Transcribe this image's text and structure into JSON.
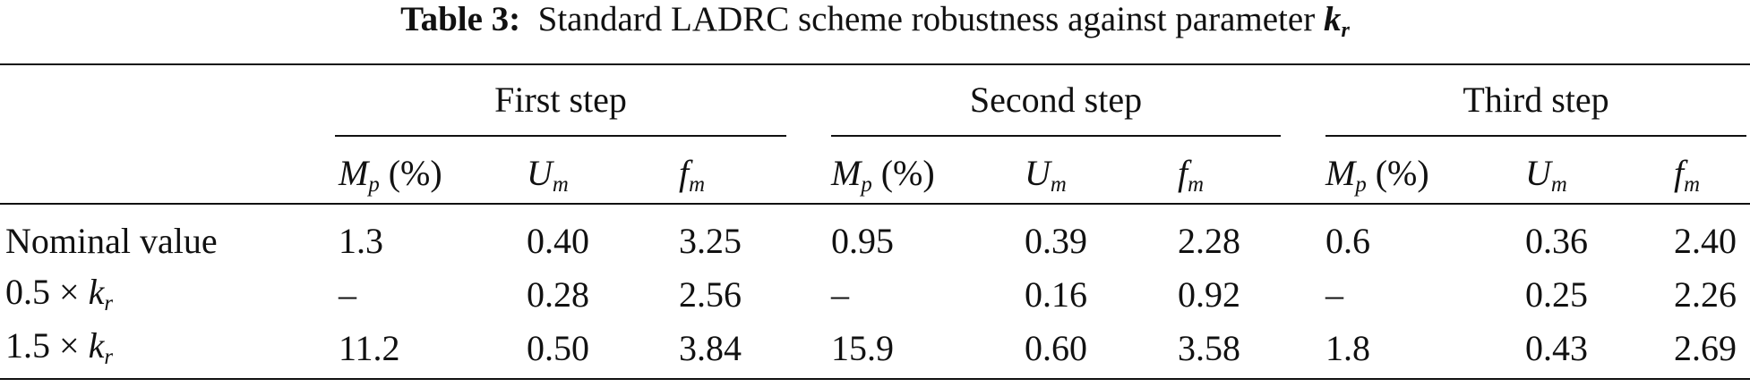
{
  "caption": {
    "label": "Table 3:",
    "text": "Standard LADRC scheme robustness against parameter",
    "symbol": "k",
    "subscript": "r"
  },
  "table": {
    "groups": [
      {
        "name": "First step",
        "columns": [
          {
            "symbol": "M",
            "subscript": "p",
            "unit": "(%)"
          },
          {
            "symbol": "U",
            "subscript": "m"
          },
          {
            "symbol": "f",
            "subscript": "m"
          }
        ]
      },
      {
        "name": "Second step",
        "columns": [
          {
            "symbol": "M",
            "subscript": "p",
            "unit": "(%)"
          },
          {
            "symbol": "U",
            "subscript": "m"
          },
          {
            "symbol": "f",
            "subscript": "m"
          }
        ]
      },
      {
        "name": "Third step",
        "columns": [
          {
            "symbol": "M",
            "subscript": "p",
            "unit": "(%)"
          },
          {
            "symbol": "U",
            "subscript": "m"
          },
          {
            "symbol": "f",
            "subscript": "m"
          }
        ]
      }
    ],
    "rows": [
      {
        "label": {
          "text": "Nominal value"
        },
        "cells": [
          "1.3",
          "0.40",
          "3.25",
          "0.95",
          "0.39",
          "2.28",
          "0.6",
          "0.36",
          "2.40"
        ]
      },
      {
        "label": {
          "text": "0.5 ×",
          "symbol": "k",
          "subscript": "r"
        },
        "cells": [
          "–",
          "0.28",
          "2.56",
          "–",
          "0.16",
          "0.92",
          "–",
          "0.25",
          "2.26"
        ]
      },
      {
        "label": {
          "text": "1.5 ×",
          "symbol": "k",
          "subscript": "r"
        },
        "cells": [
          "11.2",
          "0.50",
          "3.84",
          "15.9",
          "0.60",
          "3.58",
          "1.8",
          "0.43",
          "2.69"
        ]
      }
    ]
  }
}
